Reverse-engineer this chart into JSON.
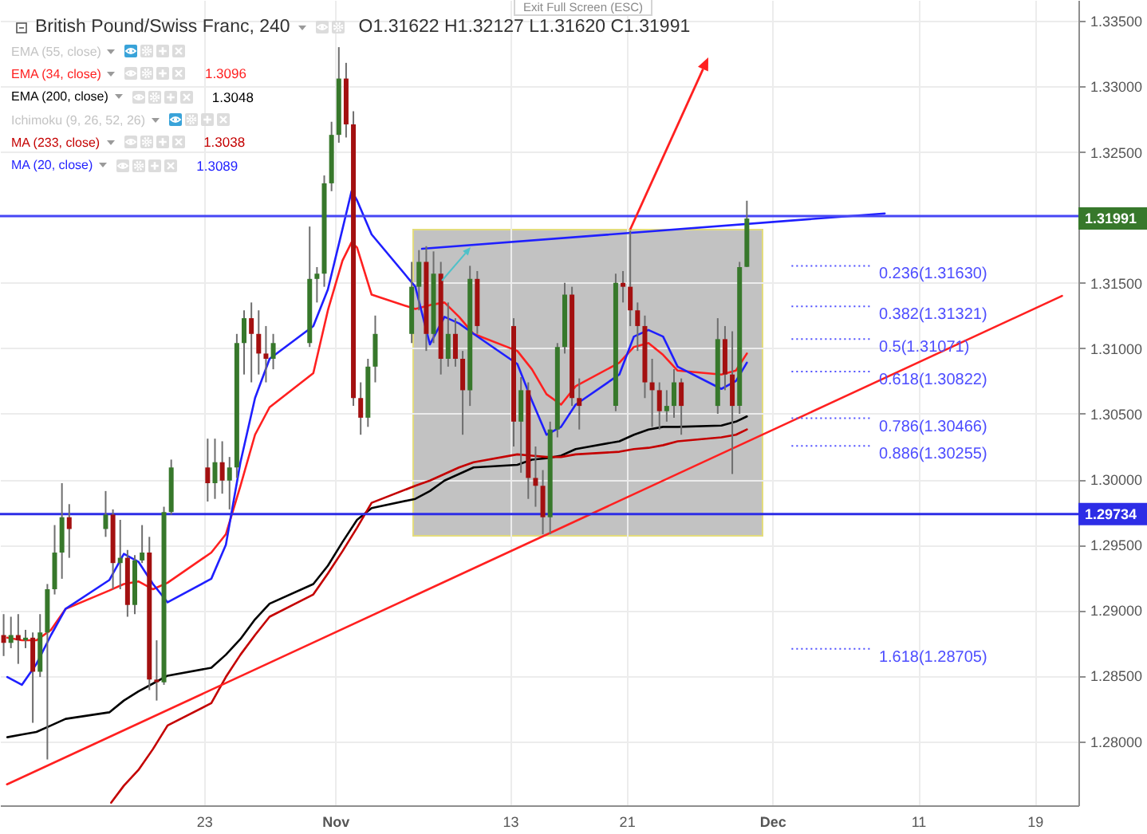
{
  "chart_data": {
    "type": "candlestick",
    "title": "British Pound/Swiss Franc, 240",
    "x": [
      "--10-09T06:00",
      "--10-09T18:00",
      "--10-10T06:00",
      "--10-10T18:00",
      "--10-11T06:00",
      "--10-11T18:00",
      "--10-12T06:00",
      "--10-12T18:00",
      "--10-13T06:00",
      "--10-13T18:00",
      "--10-16T06:00",
      "--10-16T18:00",
      "--10-17T06:00",
      "--10-17T18:00",
      "--10-18T06:00",
      "--10-18T18:00",
      "--10-19T06:00",
      "--10-19T18:00",
      "--10-20T06:00",
      "--10-20T18:00",
      "--10-23T06:00",
      "--10-23T18:00",
      "--10-24T06:00",
      "--10-24T18:00",
      "--10-25T06:00",
      "--10-25T18:00",
      "--10-26T06:00",
      "--10-26T18:00",
      "--10-27T06:00",
      "--10-27T18:00",
      "--10-30T06:00",
      "--10-30T18:00",
      "--10-31T06:00",
      "--10-31T18:00",
      "--11-01T06:00",
      "--11-01T18:00",
      "--11-02T06:00",
      "--11-02T18:00",
      "--11-03T06:00",
      "--11-03T18:00",
      "--11-06T06:00",
      "--11-06T18:00",
      "--11-07T06:00",
      "--11-07T18:00",
      "--11-08T06:00",
      "--11-08T18:00",
      "--11-09T06:00",
      "--11-09T18:00",
      "--11-10T06:00",
      "--11-10T18:00",
      "--11-13T06:00",
      "--11-13T18:00",
      "--11-14T06:00",
      "--11-14T18:00",
      "--11-15T06:00",
      "--11-15T18:00",
      "--11-16T06:00",
      "--11-16T18:00",
      "--11-17T06:00",
      "--11-17T18:00",
      "--11-20T06:00",
      "--11-20T18:00",
      "--11-21T06:00",
      "--11-21T18:00",
      "--11-22T06:00",
      "--11-22T18:00",
      "--11-23T06:00",
      "--11-23T18:00",
      "--11-24T06:00",
      "--11-24T18:00",
      "--11-27T06:00",
      "--11-27T18:00",
      "--11-28T06:00",
      "--11-28T18:00",
      "--11-29T06:00"
    ],
    "ohlc": [
      [
        1.2881,
        1.2897,
        1.2865,
        1.2875
      ],
      [
        1.2875,
        1.2895,
        1.2871,
        1.2881
      ],
      [
        1.2881,
        1.2897,
        1.2859,
        1.2877
      ],
      [
        1.2877,
        1.2885,
        1.2871,
        1.2879
      ],
      [
        1.2879,
        1.2883,
        1.2814,
        1.2853
      ],
      [
        1.2853,
        1.2897,
        1.2849,
        1.2883
      ],
      [
        1.2883,
        1.292,
        1.2786,
        1.2916
      ],
      [
        1.2916,
        1.2965,
        1.2912,
        1.2944
      ],
      [
        1.2944,
        1.2997,
        1.2924,
        1.2971
      ],
      [
        1.2971,
        1.2981,
        1.294,
        1.2962
      ],
      [
        1.2962,
        1.2991,
        1.2956,
        1.2973
      ],
      [
        1.2973,
        1.2977,
        1.2916,
        1.2936
      ],
      [
        1.2936,
        1.2969,
        1.2916,
        1.294
      ],
      [
        1.294,
        1.2946,
        1.2895,
        1.2904
      ],
      [
        1.2904,
        1.2942,
        1.2897,
        1.2938
      ],
      [
        1.2938,
        1.2965,
        1.2936,
        1.2944
      ],
      [
        1.2944,
        1.2956,
        1.2839,
        1.2847
      ],
      [
        1.2847,
        1.2877,
        1.2831,
        1.2845
      ],
      [
        1.2845,
        1.2979,
        1.2843,
        1.2975
      ],
      [
        1.2975,
        1.3015,
        1.2973,
        1.3009
      ],
      [
        1.3009,
        1.3031,
        1.2983,
        1.2997
      ],
      [
        1.2997,
        1.3031,
        1.2985,
        1.3013
      ],
      [
        1.3013,
        1.3029,
        1.2989,
        1.2999
      ],
      [
        1.2999,
        1.3017,
        1.2977,
        1.3009
      ],
      [
        1.3009,
        1.3111,
        1.3001,
        1.3104
      ],
      [
        1.3104,
        1.3129,
        1.308,
        1.3123
      ],
      [
        1.3123,
        1.3135,
        1.3074,
        1.3111
      ],
      [
        1.3111,
        1.3129,
        1.308,
        1.3096
      ],
      [
        1.3096,
        1.3117,
        1.3074,
        1.3092
      ],
      [
        1.3092,
        1.3111,
        1.3084,
        1.3104
      ],
      [
        1.3104,
        1.3193,
        1.3101,
        1.3153
      ],
      [
        1.3153,
        1.3162,
        1.3135,
        1.3157
      ],
      [
        1.3157,
        1.3232,
        1.3147,
        1.3226
      ],
      [
        1.3226,
        1.3273,
        1.322,
        1.3263
      ],
      [
        1.3263,
        1.333,
        1.3257,
        1.3306
      ],
      [
        1.3306,
        1.3318,
        1.3261,
        1.3271
      ],
      [
        1.3271,
        1.3281,
        1.3056,
        1.3062
      ],
      [
        1.3062,
        1.3074,
        1.3034,
        1.3047
      ],
      [
        1.3047,
        1.3092,
        1.304,
        1.3086
      ],
      [
        1.3086,
        1.3125,
        1.3074,
        1.3111
      ],
      [
        1.3111,
        1.3166,
        1.3104,
        1.3147
      ],
      [
        1.3147,
        1.3175,
        1.3129,
        1.3166
      ],
      [
        1.3166,
        1.3178,
        1.3098,
        1.3111
      ],
      [
        1.3111,
        1.3174,
        1.3104,
        1.3157
      ],
      [
        1.3157,
        1.3166,
        1.308,
        1.3092
      ],
      [
        1.3092,
        1.3135,
        1.3086,
        1.3111
      ],
      [
        1.3111,
        1.3123,
        1.3086,
        1.3092
      ],
      [
        1.3092,
        1.3098,
        1.3034,
        1.3068
      ],
      [
        1.3068,
        1.3163,
        1.3056,
        1.3153
      ],
      [
        1.3153,
        1.3159,
        1.3111,
        1.3117
      ],
      [
        1.3117,
        1.3123,
        1.3025,
        1.3044
      ],
      [
        1.3044,
        1.3078,
        1.3005,
        1.3068
      ],
      [
        1.3068,
        1.3074,
        1.2985,
        1.3001
      ],
      [
        1.3001,
        1.3025,
        1.2979,
        1.2995
      ],
      [
        1.2995,
        1.3007,
        1.2958,
        1.2971
      ],
      [
        1.2971,
        1.3044,
        1.2958,
        1.3038
      ],
      [
        1.3038,
        1.3104,
        1.3032,
        1.3101
      ],
      [
        1.3101,
        1.315,
        1.3096,
        1.3141
      ],
      [
        1.3141,
        1.3147,
        1.3056,
        1.3062
      ],
      [
        1.3062,
        1.3077,
        1.3038,
        1.3056
      ],
      [
        1.3056,
        1.3157,
        1.3052,
        1.315
      ],
      [
        1.315,
        1.3159,
        1.3135,
        1.3147
      ],
      [
        1.3147,
        1.319,
        1.3117,
        1.3129
      ],
      [
        1.3129,
        1.3135,
        1.3098,
        1.3117
      ],
      [
        1.3117,
        1.3125,
        1.3062,
        1.3074
      ],
      [
        1.3074,
        1.3092,
        1.304,
        1.3068
      ],
      [
        1.3068,
        1.3074,
        1.3038,
        1.3052
      ],
      [
        1.3052,
        1.3068,
        1.3044,
        1.3056
      ],
      [
        1.3056,
        1.3084,
        1.3047,
        1.3074
      ],
      [
        1.3074,
        1.3077,
        1.3034,
        1.3056
      ],
      [
        1.3056,
        1.3123,
        1.305,
        1.3107
      ],
      [
        1.3107,
        1.3117,
        1.3068,
        1.308
      ],
      [
        1.308,
        1.3113,
        1.3004,
        1.3056
      ],
      [
        1.3056,
        1.3166,
        1.305,
        1.3162
      ],
      [
        1.31622,
        1.32127,
        1.3162,
        1.31991
      ]
    ],
    "xlim": [
      "--10-09",
      "--12-22"
    ],
    "xticks": [
      {
        "value": "--10-23",
        "label": "23"
      },
      {
        "value": "--11-01",
        "label": "Nov"
      },
      {
        "value": "--11-13",
        "label": "13"
      },
      {
        "value": "--11-21",
        "label": "21"
      },
      {
        "value": "--12-01",
        "label": "Dec"
      },
      {
        "value": "--12-11",
        "label": "11"
      },
      {
        "value": "--12-19",
        "label": "19"
      }
    ],
    "ylim": [
      1.2751,
      1.3366
    ],
    "yticks": [
      {
        "value": 1.28,
        "label": "1.28000"
      },
      {
        "value": 1.285,
        "label": "1.28500"
      },
      {
        "value": 1.29,
        "label": "1.29000"
      },
      {
        "value": 1.295,
        "label": "1.29500"
      },
      {
        "value": 1.3,
        "label": "1.30000"
      },
      {
        "value": 1.305,
        "label": "1.30500"
      },
      {
        "value": 1.31,
        "label": "1.31000"
      },
      {
        "value": 1.315,
        "label": "1.31500"
      },
      {
        "value": 1.325,
        "label": "1.32500"
      },
      {
        "value": 1.33,
        "label": "1.33000"
      },
      {
        "value": 1.335,
        "label": "1.33500"
      }
    ],
    "grid": true,
    "legend": "top left",
    "series": [
      {
        "name": "EMA (55, close)",
        "type": "line",
        "values": [
          null,
          null,
          null,
          null,
          null,
          null,
          null,
          null,
          null,
          null,
          null,
          null,
          null,
          null,
          null,
          null,
          null,
          null,
          null,
          null,
          null,
          null,
          null,
          null,
          null,
          null,
          null,
          null,
          null,
          null,
          null,
          null,
          null,
          null,
          null,
          null,
          null,
          null,
          null,
          null,
          null,
          null,
          null,
          null,
          null,
          null,
          null,
          null,
          null,
          null,
          null,
          null,
          null,
          null,
          null,
          null,
          null,
          null,
          null,
          null,
          null,
          null,
          null,
          null,
          null,
          null,
          null,
          null,
          null,
          null,
          null,
          null,
          null,
          null,
          null
        ]
      },
      {
        "name": "EMA (34, close)",
        "type": "line",
        "color": "#ff2020",
        "x": [
          "--10-09T12:00",
          "--10-10T12:00",
          "--10-11T12:00",
          "--10-12T12:00",
          "--10-13T12:00",
          "--10-16T12:00",
          "--10-17T12:00",
          "--10-18T12:00",
          "--10-19T12:00",
          "--10-20T12:00",
          "--10-23T12:00",
          "--10-24T12:00",
          "--10-25T12:00",
          "--10-26T12:00",
          "--10-27T12:00",
          "--10-30T12:00",
          "--10-31T12:00",
          "--11-01T12:00",
          "--11-02T03:00",
          "--11-02T12:00",
          "--11-03T12:00",
          "--11-06T12:00",
          "--11-07T12:00",
          "--11-08T12:00",
          "--11-09T12:00",
          "--11-10T12:00",
          "--11-13T12:00",
          "--11-14T12:00",
          "--11-15T12:00",
          "--11-16T12:00",
          "--11-17T12:00",
          "--11-20T12:00",
          "--11-21T12:00",
          "--11-22T12:00",
          "--11-23T12:00",
          "--11-24T12:00",
          "--11-27T12:00",
          "--11-28T12:00",
          "--11-29T06:00"
        ],
        "values": [
          1.2879,
          1.2877,
          1.2877,
          1.2885,
          1.2901,
          1.2915,
          1.292,
          1.2922,
          1.2916,
          1.2921,
          1.2944,
          1.2958,
          1.2995,
          1.3034,
          1.3055,
          1.3081,
          1.3129,
          1.3167,
          1.3181,
          1.3177,
          1.3141,
          1.313,
          1.3133,
          1.3135,
          1.3124,
          1.3111,
          1.3098,
          1.3084,
          1.3065,
          1.3057,
          1.3071,
          1.3089,
          1.3101,
          1.3104,
          1.3095,
          1.3083,
          1.308,
          1.3083,
          1.3096
        ]
      },
      {
        "name": "EMA (200, close)",
        "type": "line",
        "color": "#000000",
        "x": [
          "--10-09T12:00",
          "--10-10T12:00",
          "--10-11T12:00",
          "--10-12T12:00",
          "--10-13T12:00",
          "--10-16T12:00",
          "--10-17T12:00",
          "--10-18T12:00",
          "--10-19T12:00",
          "--10-20T12:00",
          "--10-23T12:00",
          "--10-24T12:00",
          "--10-25T12:00",
          "--10-26T12:00",
          "--10-27T12:00",
          "--10-30T12:00",
          "--10-31T12:00",
          "--11-01T12:00",
          "--11-02T12:00",
          "--11-03T12:00",
          "--11-06T12:00",
          "--11-07T12:00",
          "--11-08T12:00",
          "--11-09T12:00",
          "--11-10T12:00",
          "--11-13T12:00",
          "--11-14T12:00",
          "--11-15T12:00",
          "--11-16T12:00",
          "--11-17T12:00",
          "--11-20T12:00",
          "--11-21T12:00",
          "--11-22T12:00",
          "--11-23T12:00",
          "--11-24T12:00",
          "--11-27T12:00",
          "--11-28T12:00",
          "--11-29T06:00"
        ],
        "values": [
          1.2803,
          1.2805,
          1.2807,
          1.2812,
          1.2817,
          1.2822,
          1.2831,
          1.2838,
          1.2844,
          1.285,
          1.2856,
          1.2866,
          1.2878,
          1.2893,
          1.2905,
          1.292,
          1.2934,
          1.2952,
          1.2969,
          1.2978,
          1.2985,
          1.2991,
          1.2999,
          1.3004,
          1.3009,
          1.3011,
          1.3015,
          1.3016,
          1.3018,
          1.3023,
          1.3029,
          1.3034,
          1.3038,
          1.304,
          1.304,
          1.3041,
          1.3044,
          1.3048
        ]
      },
      {
        "name": "Ichimoku (9, 26, 52, 26)",
        "type": "line",
        "values": [
          null,
          null,
          null,
          null,
          null,
          null,
          null,
          null,
          null,
          null,
          null,
          null,
          null,
          null,
          null,
          null,
          null,
          null,
          null,
          null,
          null,
          null,
          null,
          null,
          null,
          null,
          null,
          null,
          null,
          null,
          null,
          null,
          null,
          null,
          null,
          null,
          null,
          null,
          null,
          null,
          null,
          null,
          null,
          null,
          null,
          null,
          null,
          null,
          null,
          null,
          null,
          null,
          null,
          null,
          null,
          null,
          null,
          null,
          null,
          null,
          null,
          null,
          null,
          null,
          null,
          null,
          null,
          null,
          null,
          null,
          null,
          null,
          null,
          null,
          null
        ]
      },
      {
        "name": "MA (233, close)",
        "type": "line",
        "color": "#c40000",
        "x": [
          "--10-16T15:00",
          "--10-17T12:00",
          "--10-18T12:00",
          "--10-19T12:00",
          "--10-20T12:00",
          "--10-23T12:00",
          "--10-24T12:00",
          "--10-25T12:00",
          "--10-26T12:00",
          "--10-27T12:00",
          "--10-30T12:00",
          "--10-31T12:00",
          "--11-01T12:00",
          "--11-02T12:00",
          "--11-03T12:00",
          "--11-06T12:00",
          "--11-07T12:00",
          "--11-08T12:00",
          "--11-09T12:00",
          "--11-10T12:00",
          "--11-13T12:00",
          "--11-14T12:00",
          "--11-15T12:00",
          "--11-16T12:00",
          "--11-17T12:00",
          "--11-20T12:00",
          "--11-21T12:00",
          "--11-22T12:00",
          "--11-23T12:00",
          "--11-24T12:00",
          "--11-27T12:00",
          "--11-28T12:00",
          "--11-29T06:00"
        ],
        "values": [
          1.2753,
          1.2766,
          1.2778,
          1.2794,
          1.2812,
          1.2829,
          1.2849,
          1.2866,
          1.2881,
          1.2895,
          1.2912,
          1.2928,
          1.2945,
          1.2963,
          1.2982,
          1.2995,
          1.2999,
          1.3004,
          1.3009,
          1.3013,
          1.3019,
          1.3018,
          1.3017,
          1.3017,
          1.3019,
          1.3021,
          1.3023,
          1.3024,
          1.3026,
          1.3029,
          1.3032,
          1.3034,
          1.3038
        ]
      },
      {
        "name": "MA (20, close)",
        "type": "line",
        "color": "#1f1fff",
        "x": [
          "--10-09T12:00",
          "--10-10T12:00",
          "--10-11T12:00",
          "--10-12T12:00",
          "--10-13T12:00",
          "--10-16T12:00",
          "--10-17T12:00",
          "--10-18T12:00",
          "--10-19T12:00",
          "--10-20T12:00",
          "--10-23T12:00",
          "--10-24T12:00",
          "--10-25T12:00",
          "--10-26T12:00",
          "--10-27T12:00",
          "--10-30T12:00",
          "--10-31T12:00",
          "--11-01T12:00",
          "--11-02T03:00",
          "--11-02T12:00",
          "--11-03T12:00",
          "--11-06T12:00",
          "--11-07T12:00",
          "--11-08T12:00",
          "--11-09T12:00",
          "--11-10T12:00",
          "--11-13T12:00",
          "--11-14T12:00",
          "--11-15T12:00",
          "--11-16T12:00",
          "--11-17T12:00",
          "--11-20T12:00",
          "--11-21T12:00",
          "--11-22T12:00",
          "--11-23T12:00",
          "--11-24T12:00",
          "--11-27T12:00",
          "--11-28T12:00",
          "--11-29T06:00"
        ],
        "values": [
          1.2849,
          1.2843,
          1.2859,
          1.2881,
          1.2901,
          1.2923,
          1.2943,
          1.2937,
          1.292,
          1.2906,
          1.2924,
          1.295,
          1.3013,
          1.3062,
          1.3092,
          1.3117,
          1.3145,
          1.3191,
          1.322,
          1.3213,
          1.3187,
          1.3147,
          1.3103,
          1.3124,
          1.3119,
          1.3111,
          1.3088,
          1.306,
          1.3034,
          1.304,
          1.3057,
          1.308,
          1.3109,
          1.3114,
          1.3109,
          1.3086,
          1.3069,
          1.3075,
          1.3089
        ]
      },
      {
        "type": "line",
        "color": "#ff2020",
        "x": [
          "--10-09T11:30",
          "--12-20T21:00"
        ],
        "values": [
          1.2767,
          1.314
        ]
      },
      {
        "type": "line",
        "color": "#1f1fff",
        "x": [
          "--11-06T23:00",
          "--12-08T17:00"
        ],
        "values": [
          1.3176,
          1.3203
        ]
      }
    ],
    "ref_lines": [
      {
        "axis": "y",
        "value": 1.3201,
        "color": "#4646f5"
      },
      {
        "axis": "y",
        "value": 1.29734,
        "label": "1.29734",
        "color": "#2d2de6"
      },
      {
        "axis": "y",
        "value": 1.3163,
        "label": "0.236(1.31630)",
        "color": "#4d4dff",
        "line_style": "dotted"
      },
      {
        "axis": "y",
        "value": 1.31321,
        "label": "0.382(1.31321)",
        "color": "#4d4dff",
        "line_style": "dotted"
      },
      {
        "axis": "y",
        "value": 1.31071,
        "label": "0.5(1.31071)",
        "color": "#4d4dff",
        "line_style": "dotted"
      },
      {
        "axis": "y",
        "value": 1.30822,
        "label": "0.618(1.30822)",
        "color": "#4d4dff",
        "line_style": "dotted"
      },
      {
        "axis": "y",
        "value": 1.30466,
        "label": "0.786(1.30466)",
        "color": "#4d4dff",
        "line_style": "dotted"
      },
      {
        "axis": "y",
        "value": 1.30255,
        "label": "0.886(1.30255)",
        "color": "#4d4dff",
        "line_style": "dotted"
      },
      {
        "axis": "y",
        "value": 1.28705,
        "label": "1.618(1.28705)",
        "color": "#4d4dff",
        "line_style": "dotted"
      }
    ],
    "annotations": [
      "O1.31622 H1.32127 L1.31620 C1.31991",
      "Exit Full Screen (ESC)",
      "1.31991",
      "1.3096",
      "1.3048",
      "1.3038",
      "1.3089"
    ]
  }
}
